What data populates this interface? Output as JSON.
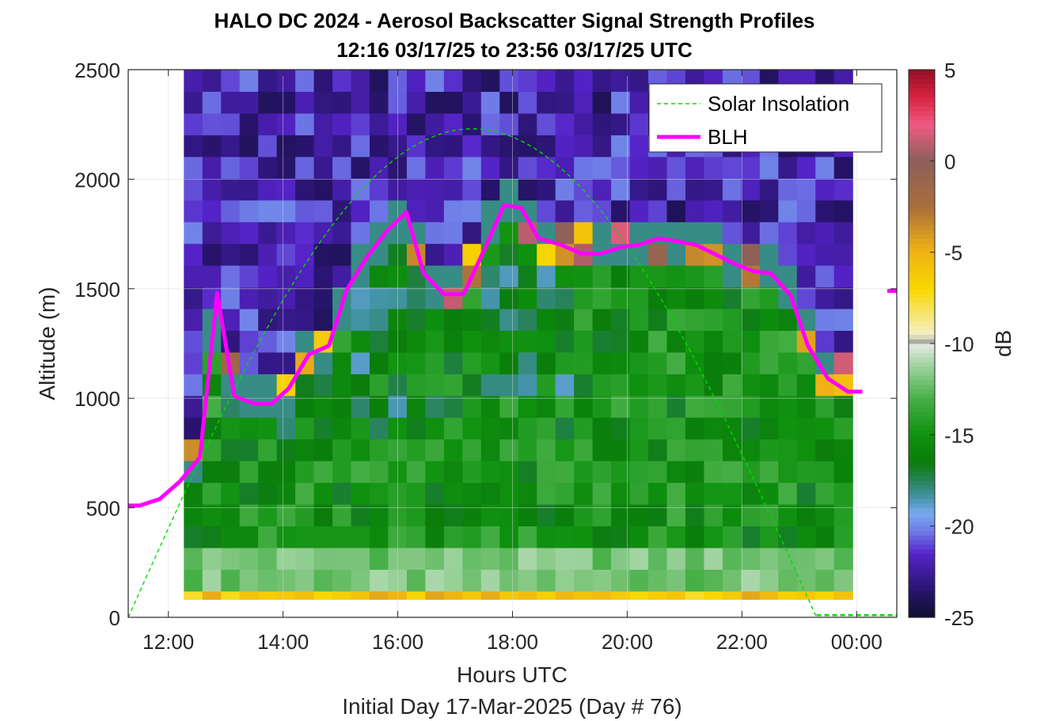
{
  "chart_data": {
    "type": "heatmap",
    "title": "HALO DC 2024 - Aerosol Backscatter Signal Strength Profiles",
    "subtitle": "12:16 03/17/25 to 23:56 03/17/25  UTC",
    "xlabel": "Hours UTC",
    "xlabel2": "Initial Day 17-Mar-2025 (Day # 76)",
    "ylabel": "Altitude (m)",
    "colorbar_label": "dB",
    "xlim_hours": [
      11.3,
      24.7
    ],
    "ylim": [
      0,
      2500
    ],
    "clim": [
      -25,
      5
    ],
    "x_tick_labels": [
      "12:00",
      "14:00",
      "16:00",
      "18:00",
      "20:00",
      "22:00",
      "00:00"
    ],
    "x_ticks_hours": [
      12,
      14,
      16,
      18,
      20,
      22,
      24
    ],
    "y_ticks": [
      0,
      500,
      1000,
      1500,
      2000,
      2500
    ],
    "y_tick_labels": [
      "0",
      "500",
      "1000",
      "1500",
      "2000",
      "2500"
    ],
    "colorbar_ticks": [
      -25,
      -20,
      -15,
      -10,
      -5,
      0,
      5
    ],
    "colorbar_tick_labels": [
      "-25",
      "-20",
      "-15",
      "-10",
      "-5",
      "0",
      "5"
    ],
    "grid": true,
    "legend_position": "top-right",
    "legend": [
      {
        "name": "Solar Insolation",
        "color": "#00dd00",
        "style": "dashed"
      },
      {
        "name": "BLH",
        "color": "#ff00ff",
        "style": "solid"
      }
    ],
    "heatmap": {
      "x_start_hours": 12.27,
      "x_end_hours": 23.93,
      "n_columns": 36,
      "altitude_bins_m": [
        100,
        2500
      ],
      "value_at_high_altitude_db": -22,
      "boundary_layer_value_db": -15,
      "near_surface_value_db": -12,
      "lowest_bin_value_db": -6,
      "cloud_top_value_db": 2
    },
    "blh": {
      "name": "BLH",
      "x_hours": [
        11.3,
        11.5,
        11.85,
        12.2,
        12.55,
        12.85,
        13.15,
        13.5,
        13.8,
        14.1,
        14.45,
        14.8,
        15.1,
        15.45,
        15.8,
        16.15,
        16.45,
        16.8,
        17.15,
        17.5,
        17.85,
        18.15,
        18.45,
        18.85,
        19.2,
        19.55,
        19.9,
        20.2,
        20.55,
        20.9,
        21.2,
        21.55,
        21.9,
        22.2,
        22.5,
        22.85,
        23.15,
        23.5,
        23.85,
        24.1
      ],
      "values": [
        510,
        510,
        540,
        620,
        730,
        1480,
        1010,
        975,
        975,
        1045,
        1200,
        1240,
        1490,
        1640,
        1760,
        1850,
        1570,
        1475,
        1475,
        1675,
        1880,
        1870,
        1730,
        1700,
        1660,
        1660,
        1690,
        1700,
        1730,
        1715,
        1700,
        1655,
        1610,
        1580,
        1570,
        1470,
        1240,
        1090,
        1030,
        1030
      ],
      "marker_value": 1490
    },
    "solar_insolation": {
      "name": "Solar Insolation",
      "sunrise_hours": 11.3,
      "peak_hours": 17.3,
      "sunset_hours": 23.3,
      "peak_altitude_equiv_m": 2230,
      "after_sunset_value_m": 10
    }
  }
}
